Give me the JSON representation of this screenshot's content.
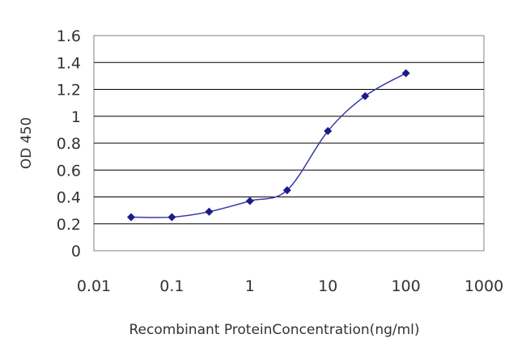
{
  "chart_data": {
    "type": "line",
    "title": "",
    "xlabel": "Recombinant ProteinConcentration(ng/ml)",
    "ylabel": "OD 450",
    "x_scale": "log",
    "xlim": [
      0.01,
      1000
    ],
    "ylim": [
      0,
      1.6
    ],
    "x_ticks": [
      "0.01",
      "0.1",
      "1",
      "10",
      "100",
      "1000"
    ],
    "y_ticks": [
      "0",
      "0.2",
      "0.4",
      "0.6",
      "0.8",
      "1",
      "1.2",
      "1.4",
      "1.6"
    ],
    "grid": "horizontal",
    "series": [
      {
        "x": [
          0.03,
          0.1,
          0.3,
          1,
          3,
          10,
          30,
          100
        ],
        "y": [
          0.25,
          0.25,
          0.29,
          0.37,
          0.45,
          0.89,
          1.15,
          1.32
        ]
      }
    ],
    "colors": {
      "line": "#3838a8",
      "marker": "#1a1a8c",
      "grid": "#000000",
      "plot_border": "#808080"
    }
  }
}
